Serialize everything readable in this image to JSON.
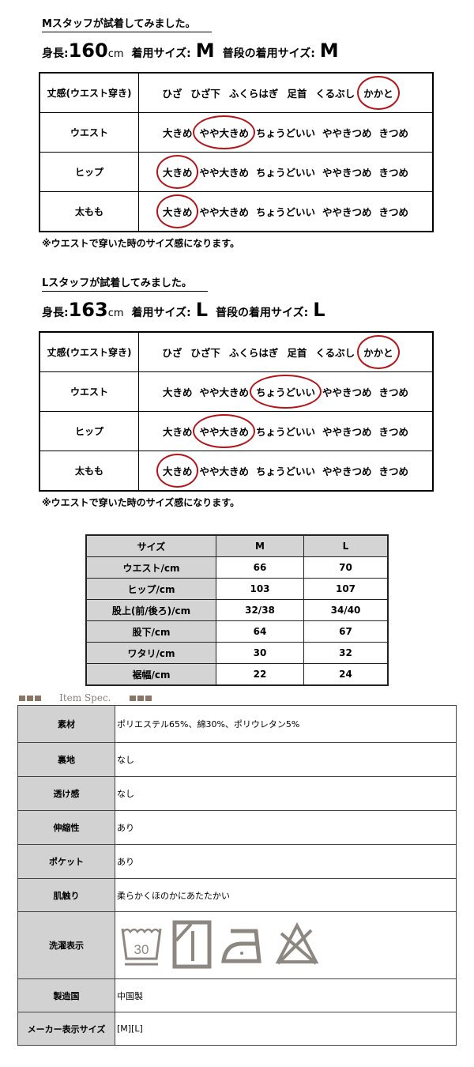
{
  "staff": [
    {
      "title": "Mスタッフが試着してみました。",
      "height_label": "身長:",
      "height": "160",
      "height_unit": "cm",
      "wear_label": "着用サイズ:",
      "wear": "M",
      "usual_label": "普段の着用サイズ:",
      "usual": "M",
      "rows": [
        {
          "label": "丈感(ウエスト穿き)",
          "options": [
            "ひざ",
            "ひざ下",
            "ふくらはぎ",
            "足首",
            "くるぶし",
            "かかと"
          ],
          "selected": 5
        },
        {
          "label": "ウエスト",
          "options": [
            "大きめ",
            "やや大きめ",
            "ちょうどいい",
            "ややきつめ",
            "きつめ"
          ],
          "selected": 1
        },
        {
          "label": "ヒップ",
          "options": [
            "大きめ",
            "やや大きめ",
            "ちょうどいい",
            "ややきつめ",
            "きつめ"
          ],
          "selected": 0
        },
        {
          "label": "太もも",
          "options": [
            "大きめ",
            "やや大きめ",
            "ちょうどいい",
            "ややきつめ",
            "きつめ"
          ],
          "selected": 0
        }
      ],
      "note": "※ウエストで穿いた時のサイズ感になります。"
    },
    {
      "title": "Lスタッフが試着してみました。",
      "height_label": "身長:",
      "height": "163",
      "height_unit": "cm",
      "wear_label": "着用サイズ:",
      "wear": "L",
      "usual_label": "普段の着用サイズ:",
      "usual": "L",
      "rows": [
        {
          "label": "丈感(ウエスト穿き)",
          "options": [
            "ひざ",
            "ひざ下",
            "ふくらはぎ",
            "足首",
            "くるぶし",
            "かかと"
          ],
          "selected": 5
        },
        {
          "label": "ウエスト",
          "options": [
            "大きめ",
            "やや大きめ",
            "ちょうどいい",
            "ややきつめ",
            "きつめ"
          ],
          "selected": 2
        },
        {
          "label": "ヒップ",
          "options": [
            "大きめ",
            "やや大きめ",
            "ちょうどいい",
            "ややきつめ",
            "きつめ"
          ],
          "selected": 1
        },
        {
          "label": "太もも",
          "options": [
            "大きめ",
            "やや大きめ",
            "ちょうどいい",
            "ややきつめ",
            "きつめ"
          ],
          "selected": 0
        }
      ],
      "note": "※ウエストで穿いた時のサイズ感になります。"
    }
  ],
  "size_table": {
    "headers": [
      "サイズ",
      "M",
      "L"
    ],
    "rows": [
      [
        "ウエスト/cm",
        "66",
        "70"
      ],
      [
        "ヒップ/cm",
        "103",
        "107"
      ],
      [
        "股上(前/後ろ)/cm",
        "32/38",
        "34/40"
      ],
      [
        "股下/cm",
        "64",
        "67"
      ],
      [
        "ワタリ/cm",
        "30",
        "32"
      ],
      [
        "裾幅/cm",
        "22",
        "24"
      ]
    ]
  },
  "item_spec": {
    "heading": "Item Spec.",
    "accent": "#8a7664",
    "rows": [
      {
        "label": "素材",
        "value": "ポリエステル65%、綿30%、ポリウレタン5%"
      },
      {
        "label": "裏地",
        "value": "なし"
      },
      {
        "label": "透け感",
        "value": "なし"
      },
      {
        "label": "伸縮性",
        "value": "あり"
      },
      {
        "label": "ポケット",
        "value": "あり"
      },
      {
        "label": "肌触り",
        "value": "柔らかくほのかにあたたかい"
      },
      {
        "label": "洗濯表示",
        "icons": [
          "wash-30-icon",
          "line-dry-shade-icon",
          "iron-low-icon",
          "no-bleach-icon"
        ],
        "wash_temp": "30"
      },
      {
        "label": "製造国",
        "value": "中国製"
      },
      {
        "label": "メーカー表示サイズ",
        "value": "[M][L]"
      }
    ]
  }
}
